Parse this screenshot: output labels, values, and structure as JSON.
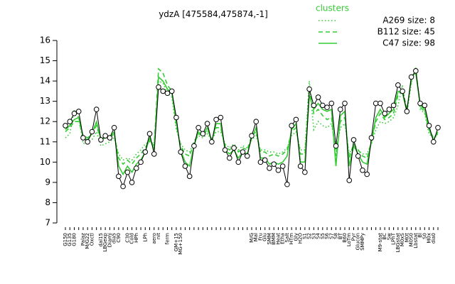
{
  "chart_data": {
    "type": "line",
    "title": "ydzA [475584,475874,-1]",
    "legend_title": "clusters",
    "legend_position": "top-right",
    "ylim": [
      7,
      16
    ],
    "yticks": [
      7,
      8,
      9,
      10,
      11,
      12,
      13,
      14,
      15,
      16
    ],
    "color": "#000000",
    "categories": [
      "G150",
      "G135",
      "G180",
      null,
      "Palaz",
      "M/G22",
      "Oxctl",
      null,
      "dal15",
      "LBGexp",
      "Diami",
      "dia5",
      "C90",
      null,
      "C30",
      "Cold",
      "HPh",
      null,
      "LPh",
      null,
      "aero",
      "nit",
      null,
      "ferm",
      null,
      "GM+15",
      "MG+150",
      null,
      null,
      null,
      null,
      null,
      null,
      null,
      null,
      null,
      null,
      null,
      null,
      null,
      null,
      null,
      "M/G",
      "Mal",
      "Fru",
      "Glu",
      "SMM",
      "BMM",
      "Heat",
      "Etha",
      "Salt",
      "HTm",
      "Gly",
      "H2O",
      "S1",
      "S2",
      "S3",
      "S4",
      "S5",
      "S6",
      "S7",
      "S8",
      "BT",
      "B60",
      "LoTm",
      "Pyr",
      "Glucon",
      "SMMPy",
      null,
      null,
      null,
      "M9-stat",
      "BC",
      "Sw",
      "LPhT",
      "LBGstat",
      "M0xS",
      "M0t",
      "M0S0",
      "Lbstat",
      "Bl",
      "S0",
      "M0x",
      "dia0",
      null
    ],
    "values": [
      11.8,
      12.0,
      12.4,
      12.5,
      11.2,
      11.0,
      11.5,
      12.6,
      11.1,
      11.3,
      11.2,
      11.7,
      9.3,
      8.8,
      9.5,
      9.0,
      9.7,
      10.0,
      10.5,
      11.4,
      10.4,
      13.7,
      13.5,
      13.4,
      13.5,
      12.2,
      10.5,
      9.8,
      9.3,
      10.8,
      11.7,
      11.4,
      11.9,
      11.0,
      12.1,
      12.2,
      10.6,
      10.2,
      10.7,
      10.0,
      10.5,
      10.3,
      11.3,
      12.0,
      10.0,
      10.1,
      9.7,
      9.9,
      9.6,
      9.8,
      8.9,
      11.8,
      12.1,
      9.8,
      9.5,
      13.6,
      12.8,
      13.2,
      12.8,
      12.7,
      12.9,
      10.8,
      12.6,
      12.9,
      9.1,
      11.1,
      10.3,
      9.6,
      9.4,
      11.2,
      12.9,
      12.9,
      12.4,
      12.6,
      12.8,
      13.8,
      13.5,
      12.5,
      14.2,
      14.5,
      12.9,
      12.8,
      11.8,
      11.0,
      11.7
    ],
    "series": [
      {
        "name": "A269 size: 8",
        "color": "#33cc33",
        "linestyle": "dotted",
        "values": [
          11.2,
          11.4,
          12.6,
          12.2,
          10.9,
          11.0,
          11.1,
          11.5,
          10.8,
          10.9,
          11.0,
          11.2,
          10.4,
          10.1,
          10.2,
          10.1,
          10.4,
          10.6,
          10.9,
          11.0,
          10.9,
          14.0,
          13.9,
          13.4,
          13.2,
          11.6,
          10.9,
          10.6,
          10.5,
          11.0,
          11.3,
          11.2,
          11.4,
          11.1,
          11.5,
          11.5,
          10.9,
          10.7,
          10.9,
          10.6,
          10.8,
          10.7,
          11.1,
          11.3,
          10.6,
          10.6,
          10.5,
          10.5,
          10.4,
          10.5,
          10.7,
          11.3,
          11.5,
          10.6,
          10.6,
          14.0,
          11.6,
          12.0,
          11.8,
          11.7,
          11.9,
          10.6,
          11.7,
          11.9,
          10.4,
          10.8,
          10.6,
          10.4,
          10.4,
          10.9,
          11.6,
          12.0,
          11.9,
          12.0,
          12.2,
          12.8,
          13.8,
          12.4,
          13.9,
          14.7,
          12.6,
          12.4,
          11.4,
          11.2,
          11.3
        ]
      },
      {
        "name": "B112 size: 45",
        "color": "#33cc33",
        "linestyle": "dashed",
        "values": [
          11.5,
          11.7,
          12.0,
          12.0,
          11.3,
          11.2,
          11.4,
          11.8,
          11.1,
          11.2,
          11.2,
          11.4,
          10.2,
          9.9,
          10.1,
          9.9,
          10.2,
          10.4,
          10.7,
          11.1,
          10.8,
          14.6,
          14.4,
          13.8,
          13.5,
          11.8,
          10.8,
          10.4,
          10.3,
          11.0,
          11.4,
          11.3,
          11.6,
          11.1,
          11.7,
          11.7,
          10.8,
          10.6,
          10.8,
          10.5,
          10.7,
          10.6,
          11.3,
          11.5,
          10.5,
          10.5,
          10.3,
          10.4,
          10.3,
          10.4,
          10.6,
          11.5,
          11.7,
          10.4,
          10.4,
          13.6,
          12.4,
          12.6,
          12.3,
          12.1,
          12.2,
          10.3,
          12.0,
          12.2,
          10.2,
          10.9,
          10.6,
          10.3,
          10.2,
          11.0,
          12.0,
          12.4,
          12.1,
          12.2,
          12.4,
          13.3,
          13.6,
          12.6,
          14.0,
          14.6,
          12.7,
          12.5,
          11.6,
          11.2,
          11.4
        ]
      },
      {
        "name": "C47 size: 98",
        "color": "#33cc33",
        "linestyle": "solid",
        "values": [
          11.6,
          11.8,
          12.1,
          12.2,
          11.2,
          11.1,
          11.4,
          12.0,
          11.1,
          11.2,
          11.2,
          11.5,
          9.8,
          9.4,
          9.8,
          9.5,
          9.9,
          10.1,
          10.5,
          11.2,
          10.6,
          14.2,
          14.0,
          13.6,
          13.4,
          12.0,
          10.6,
          10.0,
          9.8,
          10.8,
          11.5,
          11.3,
          11.7,
          11.0,
          11.9,
          11.9,
          10.6,
          10.4,
          10.6,
          10.2,
          10.5,
          10.4,
          11.2,
          11.7,
          10.2,
          10.2,
          9.9,
          10.0,
          9.9,
          10.0,
          10.3,
          11.6,
          11.9,
          10.0,
          10.0,
          13.3,
          12.6,
          12.9,
          12.6,
          12.5,
          12.6,
          9.8,
          12.3,
          12.5,
          9.8,
          10.8,
          10.4,
          10.0,
          9.9,
          11.0,
          12.2,
          12.6,
          12.2,
          12.4,
          12.6,
          13.5,
          13.4,
          12.5,
          14.2,
          14.4,
          12.8,
          12.6,
          11.6,
          11.1,
          11.5
        ]
      }
    ]
  }
}
